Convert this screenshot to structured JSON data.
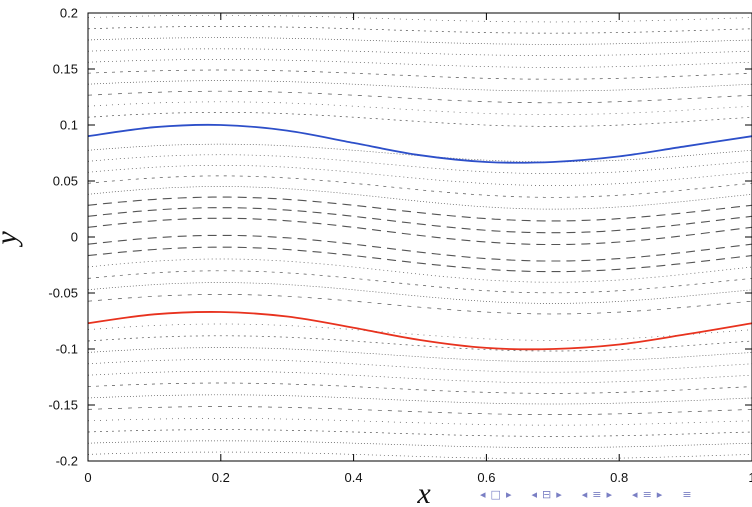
{
  "chart_data": {
    "type": "line",
    "title": "",
    "xlabel": "x",
    "ylabel": "y",
    "xlim": [
      0,
      1
    ],
    "ylim": [
      -0.2,
      0.2
    ],
    "xticks": [
      0,
      0.2,
      0.4,
      0.6,
      0.8,
      1
    ],
    "xtick_labels": [
      "0",
      "0.2",
      "0.4",
      "0.6",
      "0.8",
      "1"
    ],
    "yticks": [
      -0.2,
      -0.15,
      -0.1,
      -0.05,
      0,
      0.05,
      0.1,
      0.15,
      0.2
    ],
    "ytick_labels": [
      "-0.2",
      "-0.15",
      "-0.1",
      "-0.05",
      "0",
      "0.05",
      "0.1",
      "0.15",
      "0.2"
    ],
    "grid": false,
    "legend": false,
    "series": [
      {
        "color": "#2d4fc9",
        "x": [
          0,
          0.1,
          0.2,
          0.3,
          0.4,
          0.5,
          0.6,
          0.7,
          0.8,
          0.9,
          1.0
        ],
        "y": [
          0.09,
          0.098,
          0.1,
          0.095,
          0.084,
          0.073,
          0.067,
          0.067,
          0.072,
          0.081,
          0.09
        ]
      },
      {
        "color": "#e8321e",
        "x": [
          0,
          0.1,
          0.2,
          0.3,
          0.4,
          0.5,
          0.6,
          0.7,
          0.8,
          0.9,
          1.0
        ],
        "y": [
          -0.077,
          -0.069,
          -0.067,
          -0.071,
          -0.081,
          -0.092,
          -0.099,
          -0.1,
          -0.096,
          -0.087,
          -0.077
        ]
      }
    ],
    "background_orbits": {
      "color": "#555555",
      "style": "dotted / dashed Poincare section traces",
      "mean_y": [
        -0.195,
        -0.185,
        -0.175,
        -0.165,
        -0.155,
        -0.145,
        -0.135,
        -0.125,
        -0.115,
        -0.105,
        -0.095,
        -0.085,
        -0.06,
        -0.05,
        -0.04,
        -0.03,
        -0.02,
        -0.01,
        0.005,
        0.015,
        0.025,
        0.035,
        0.045,
        0.055,
        0.065,
        0.075,
        0.105,
        0.115,
        0.125,
        0.135,
        0.145,
        0.155,
        0.165,
        0.175,
        0.185,
        0.195
      ]
    }
  },
  "nav_icons": [
    "◂",
    "□",
    "▸",
    "◂",
    "⊟",
    "▸",
    "◂",
    "≡",
    "▸",
    "◂",
    "≡",
    "▸",
    "≡"
  ]
}
